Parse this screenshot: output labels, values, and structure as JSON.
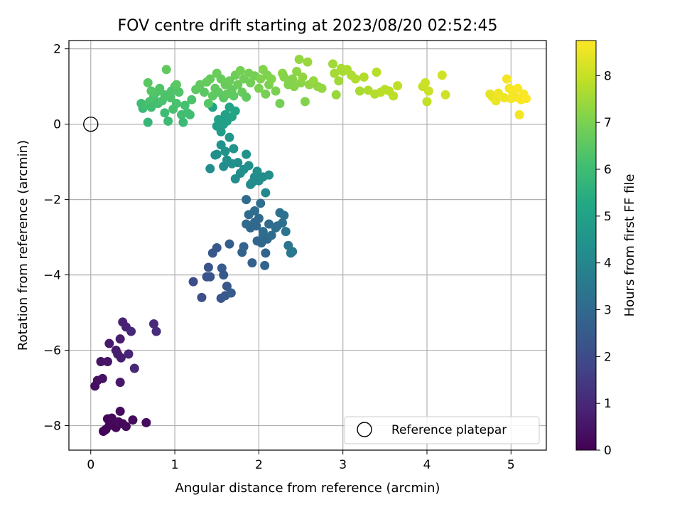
{
  "chart_data": {
    "type": "scatter",
    "title": "FOV centre drift starting at 2023/08/20 02:52:45",
    "xlabel": "Angular distance from reference (arcmin)",
    "ylabel": "Rotation from reference (arcmin)",
    "xlim": [
      -0.26,
      5.42
    ],
    "ylim": [
      -8.65,
      2.22
    ],
    "xticks": [
      0,
      1,
      2,
      3,
      4,
      5
    ],
    "yticks": [
      2,
      0,
      -2,
      -4,
      -6,
      -8
    ],
    "xtick_labels": [
      "0",
      "1",
      "2",
      "3",
      "4",
      "5"
    ],
    "ytick_labels": [
      "2",
      "0",
      "−2",
      "−4",
      "−6",
      "−8"
    ],
    "grid": true,
    "colormap": "viridis",
    "colorbar": {
      "label": "Hours from first FF file",
      "range": [
        0,
        8.75
      ],
      "ticks": [
        0,
        1,
        2,
        3,
        4,
        5,
        6,
        7,
        8
      ],
      "tick_labels": [
        "0",
        "1",
        "2",
        "3",
        "4",
        "5",
        "6",
        "7",
        "8"
      ]
    },
    "legend": {
      "position": "lower-right",
      "label": "Reference platepar"
    },
    "reference_point": {
      "x": 0,
      "y": 0
    },
    "points": [
      [
        0.05,
        -6.95,
        0.3
      ],
      [
        0.08,
        -6.8,
        0.35
      ],
      [
        0.12,
        -6.3,
        0.45
      ],
      [
        0.14,
        -6.75,
        0.4
      ],
      [
        0.2,
        -6.3,
        0.5
      ],
      [
        0.22,
        -5.82,
        0.6
      ],
      [
        0.3,
        -6.0,
        0.65
      ],
      [
        0.35,
        -5.7,
        0.7
      ],
      [
        0.36,
        -6.2,
        0.75
      ],
      [
        0.38,
        -5.25,
        0.8
      ],
      [
        0.42,
        -5.38,
        0.85
      ],
      [
        0.45,
        -6.1,
        0.9
      ],
      [
        0.48,
        -5.5,
        0.95
      ],
      [
        0.52,
        -6.48,
        1.0
      ],
      [
        0.35,
        -6.85,
        0.55
      ],
      [
        0.32,
        -6.1,
        0.7
      ],
      [
        0.75,
        -5.3,
        1.05
      ],
      [
        0.78,
        -5.5,
        1.1
      ],
      [
        0.15,
        -8.15,
        0.05
      ],
      [
        0.18,
        -8.1,
        0.1
      ],
      [
        0.2,
        -7.82,
        0.12
      ],
      [
        0.22,
        -8.0,
        0.15
      ],
      [
        0.25,
        -7.8,
        0.18
      ],
      [
        0.28,
        -7.95,
        0.2
      ],
      [
        0.3,
        -8.05,
        0.1
      ],
      [
        0.33,
        -7.9,
        0.22
      ],
      [
        0.35,
        -7.62,
        0.25
      ],
      [
        0.38,
        -7.95,
        0.15
      ],
      [
        0.42,
        -8.02,
        0.2
      ],
      [
        0.5,
        -7.85,
        0.25
      ],
      [
        0.66,
        -7.92,
        0.28
      ],
      [
        1.22,
        -4.18,
        2.05
      ],
      [
        1.32,
        -4.6,
        2.1
      ],
      [
        1.38,
        -4.05,
        2.2
      ],
      [
        1.4,
        -3.8,
        2.25
      ],
      [
        1.42,
        -4.05,
        2.3
      ],
      [
        1.45,
        -3.42,
        2.35
      ],
      [
        1.5,
        -3.28,
        2.4
      ],
      [
        1.55,
        -4.62,
        2.3
      ],
      [
        1.56,
        -3.82,
        2.5
      ],
      [
        1.58,
        -4.0,
        2.45
      ],
      [
        1.6,
        -4.55,
        2.4
      ],
      [
        1.62,
        -4.3,
        2.35
      ],
      [
        1.65,
        -3.18,
        2.6
      ],
      [
        1.67,
        -4.48,
        2.5
      ],
      [
        1.8,
        -3.4,
        2.75
      ],
      [
        1.82,
        -3.25,
        2.8
      ],
      [
        1.85,
        -2.0,
        3.05
      ],
      [
        1.88,
        -2.4,
        3.0
      ],
      [
        1.9,
        -2.75,
        2.9
      ],
      [
        1.92,
        -3.68,
        2.7
      ],
      [
        1.95,
        -2.3,
        3.1
      ],
      [
        1.97,
        -2.7,
        2.95
      ],
      [
        1.98,
        -3.1,
        2.85
      ],
      [
        2.0,
        -2.5,
        3.0
      ],
      [
        2.02,
        -2.1,
        3.15
      ],
      [
        2.03,
        -3.15,
        2.9
      ],
      [
        2.05,
        -2.95,
        3.0
      ],
      [
        2.07,
        -3.75,
        2.8
      ],
      [
        2.08,
        -3.42,
        2.85
      ],
      [
        2.1,
        -3.05,
        2.95
      ],
      [
        2.12,
        -2.65,
        3.05
      ],
      [
        2.15,
        -2.95,
        3.1
      ],
      [
        2.2,
        -2.75,
        3.15
      ],
      [
        2.25,
        -2.35,
        3.2
      ],
      [
        2.28,
        -2.62,
        3.25
      ],
      [
        2.3,
        -2.42,
        3.3
      ],
      [
        2.32,
        -2.85,
        3.35
      ],
      [
        2.35,
        -3.22,
        3.4
      ],
      [
        2.38,
        -3.42,
        3.45
      ],
      [
        2.4,
        -3.38,
        3.5
      ],
      [
        1.85,
        -2.65,
        3.0
      ],
      [
        1.95,
        -2.6,
        2.95
      ],
      [
        2.22,
        -2.7,
        3.2
      ],
      [
        2.05,
        -2.85,
        3.1
      ],
      [
        1.42,
        -1.18,
        4.2
      ],
      [
        1.48,
        -0.82,
        4.3
      ],
      [
        1.5,
        -0.8,
        4.35
      ],
      [
        1.55,
        -0.55,
        4.4
      ],
      [
        1.58,
        -1.12,
        4.25
      ],
      [
        1.6,
        -0.72,
        4.45
      ],
      [
        1.62,
        -0.95,
        4.3
      ],
      [
        1.65,
        -0.35,
        4.55
      ],
      [
        1.68,
        -1.05,
        4.35
      ],
      [
        1.7,
        -0.65,
        4.5
      ],
      [
        1.72,
        -1.45,
        4.2
      ],
      [
        1.75,
        -1.02,
        4.3
      ],
      [
        1.78,
        -1.3,
        4.25
      ],
      [
        1.82,
        -1.2,
        4.3
      ],
      [
        1.85,
        -0.8,
        4.4
      ],
      [
        1.88,
        -1.1,
        4.35
      ],
      [
        1.9,
        -1.6,
        4.15
      ],
      [
        1.92,
        -1.55,
        4.2
      ],
      [
        1.95,
        -1.4,
        4.25
      ],
      [
        1.98,
        -1.25,
        4.3
      ],
      [
        2.0,
        -1.5,
        4.2
      ],
      [
        2.05,
        -1.4,
        4.25
      ],
      [
        2.08,
        -1.82,
        4.1
      ],
      [
        2.12,
        -1.35,
        4.3
      ],
      [
        1.55,
        -0.2,
        4.8
      ],
      [
        1.58,
        0.0,
        4.9
      ],
      [
        1.6,
        0.25,
        5.0
      ],
      [
        1.62,
        0.08,
        4.95
      ],
      [
        1.65,
        0.45,
        5.1
      ],
      [
        1.68,
        0.2,
        5.05
      ],
      [
        1.72,
        0.35,
        5.15
      ],
      [
        1.5,
        -0.05,
        4.85
      ],
      [
        1.52,
        0.12,
        4.9
      ],
      [
        1.45,
        0.45,
        5.1
      ],
      [
        0.6,
        0.55,
        6.0
      ],
      [
        0.62,
        0.42,
        5.9
      ],
      [
        0.65,
        0.5,
        6.1
      ],
      [
        0.68,
        0.05,
        5.8
      ],
      [
        0.7,
        0.6,
        6.2
      ],
      [
        0.72,
        0.45,
        6.05
      ],
      [
        0.75,
        0.72,
        6.2
      ],
      [
        0.78,
        0.85,
        6.3
      ],
      [
        0.8,
        0.55,
        6.1
      ],
      [
        0.82,
        0.95,
        6.35
      ],
      [
        0.85,
        0.62,
        6.2
      ],
      [
        0.88,
        0.78,
        6.3
      ],
      [
        0.9,
        1.45,
        6.6
      ],
      [
        0.92,
        0.08,
        5.95
      ],
      [
        0.95,
        0.7,
        6.25
      ],
      [
        0.98,
        0.4,
        6.15
      ],
      [
        1.0,
        1.0,
        6.4
      ],
      [
        1.02,
        0.55,
        6.2
      ],
      [
        1.05,
        0.85,
        6.35
      ],
      [
        1.08,
        0.25,
        6.05
      ],
      [
        1.1,
        0.05,
        5.9
      ],
      [
        1.12,
        0.5,
        6.15
      ],
      [
        1.15,
        0.3,
        6.1
      ],
      [
        1.18,
        0.25,
        6.05
      ],
      [
        1.2,
        0.65,
        6.25
      ],
      [
        0.68,
        1.1,
        6.5
      ],
      [
        0.72,
        0.88,
        6.4
      ],
      [
        0.88,
        0.3,
        6.0
      ],
      [
        0.96,
        0.88,
        6.3
      ],
      [
        1.02,
        1.05,
        6.5
      ],
      [
        1.25,
        0.92,
        6.55
      ],
      [
        1.3,
        1.05,
        6.6
      ],
      [
        1.35,
        0.85,
        6.5
      ],
      [
        1.38,
        1.12,
        6.65
      ],
      [
        1.4,
        0.55,
        6.4
      ],
      [
        1.42,
        1.2,
        6.7
      ],
      [
        1.45,
        0.75,
        6.55
      ],
      [
        1.48,
        0.95,
        6.6
      ],
      [
        1.5,
        1.35,
        6.75
      ],
      [
        1.52,
        0.85,
        6.55
      ],
      [
        1.55,
        1.2,
        6.7
      ],
      [
        1.58,
        0.7,
        6.5
      ],
      [
        1.6,
        1.05,
        6.7
      ],
      [
        1.62,
        0.8,
        6.6
      ],
      [
        1.65,
        1.15,
        6.75
      ],
      [
        1.68,
        0.92,
        6.65
      ],
      [
        1.7,
        0.75,
        6.55
      ],
      [
        1.72,
        1.3,
        6.8
      ],
      [
        1.75,
        1.05,
        6.75
      ],
      [
        1.78,
        1.42,
        6.9
      ],
      [
        1.8,
        0.85,
        6.7
      ],
      [
        1.82,
        1.2,
        6.85
      ],
      [
        1.85,
        0.72,
        6.6
      ],
      [
        1.88,
        1.35,
        6.9
      ],
      [
        1.9,
        1.1,
        6.85
      ],
      [
        1.95,
        1.28,
        6.9
      ],
      [
        2.0,
        0.95,
        7.0
      ],
      [
        2.02,
        1.2,
        7.05
      ],
      [
        2.05,
        1.45,
        7.1
      ],
      [
        2.08,
        0.8,
        6.95
      ],
      [
        2.1,
        1.3,
        7.05
      ],
      [
        2.12,
        1.05,
        7.0
      ],
      [
        2.15,
        1.2,
        7.1
      ],
      [
        2.2,
        0.88,
        7.0
      ],
      [
        2.25,
        0.55,
        6.9
      ],
      [
        2.28,
        1.35,
        7.2
      ],
      [
        2.3,
        1.25,
        7.15
      ],
      [
        2.35,
        1.05,
        7.1
      ],
      [
        2.4,
        1.2,
        7.15
      ],
      [
        2.45,
        1.4,
        7.25
      ],
      [
        2.48,
        1.72,
        7.35
      ],
      [
        2.5,
        1.1,
        7.2
      ],
      [
        2.52,
        1.25,
        7.3
      ],
      [
        2.55,
        0.6,
        7.1
      ],
      [
        2.58,
        1.65,
        7.4
      ],
      [
        2.6,
        1.05,
        7.3
      ],
      [
        2.65,
        1.15,
        7.35
      ],
      [
        2.7,
        1.0,
        7.3
      ],
      [
        2.75,
        0.95,
        7.35
      ],
      [
        2.42,
        1.0,
        7.15
      ],
      [
        2.88,
        1.6,
        7.5
      ],
      [
        2.9,
        1.35,
        7.55
      ],
      [
        2.92,
        0.78,
        7.4
      ],
      [
        2.95,
        1.15,
        7.5
      ],
      [
        2.98,
        1.48,
        7.6
      ],
      [
        3.0,
        1.4,
        7.6
      ],
      [
        3.05,
        1.45,
        7.65
      ],
      [
        3.1,
        1.3,
        7.65
      ],
      [
        3.15,
        1.2,
        7.7
      ],
      [
        3.2,
        0.88,
        7.6
      ],
      [
        3.25,
        1.25,
        7.75
      ],
      [
        3.3,
        0.9,
        7.7
      ],
      [
        3.38,
        0.8,
        7.75
      ],
      [
        3.4,
        1.38,
        7.8
      ],
      [
        3.45,
        0.85,
        7.8
      ],
      [
        3.5,
        0.92,
        7.85
      ],
      [
        3.55,
        0.88,
        7.85
      ],
      [
        3.6,
        0.75,
        7.85
      ],
      [
        3.65,
        1.02,
        7.9
      ],
      [
        3.95,
        1.0,
        8.0
      ],
      [
        3.98,
        1.1,
        8.05
      ],
      [
        4.0,
        0.6,
        7.95
      ],
      [
        4.02,
        0.88,
        8.05
      ],
      [
        4.18,
        1.3,
        8.15
      ],
      [
        4.22,
        0.78,
        8.1
      ],
      [
        4.75,
        0.8,
        8.45
      ],
      [
        4.78,
        0.72,
        8.45
      ],
      [
        4.82,
        0.62,
        8.5
      ],
      [
        4.95,
        1.2,
        8.6
      ],
      [
        4.98,
        0.95,
        8.6
      ],
      [
        5.0,
        0.68,
        8.6
      ],
      [
        5.02,
        0.85,
        8.65
      ],
      [
        5.05,
        0.72,
        8.65
      ],
      [
        5.08,
        0.95,
        8.7
      ],
      [
        5.1,
        0.25,
        8.6
      ],
      [
        5.12,
        0.65,
        8.7
      ],
      [
        5.15,
        0.8,
        8.7
      ],
      [
        5.18,
        0.68,
        8.75
      ],
      [
        4.92,
        0.7,
        8.55
      ],
      [
        4.85,
        0.82,
        8.55
      ]
    ]
  }
}
